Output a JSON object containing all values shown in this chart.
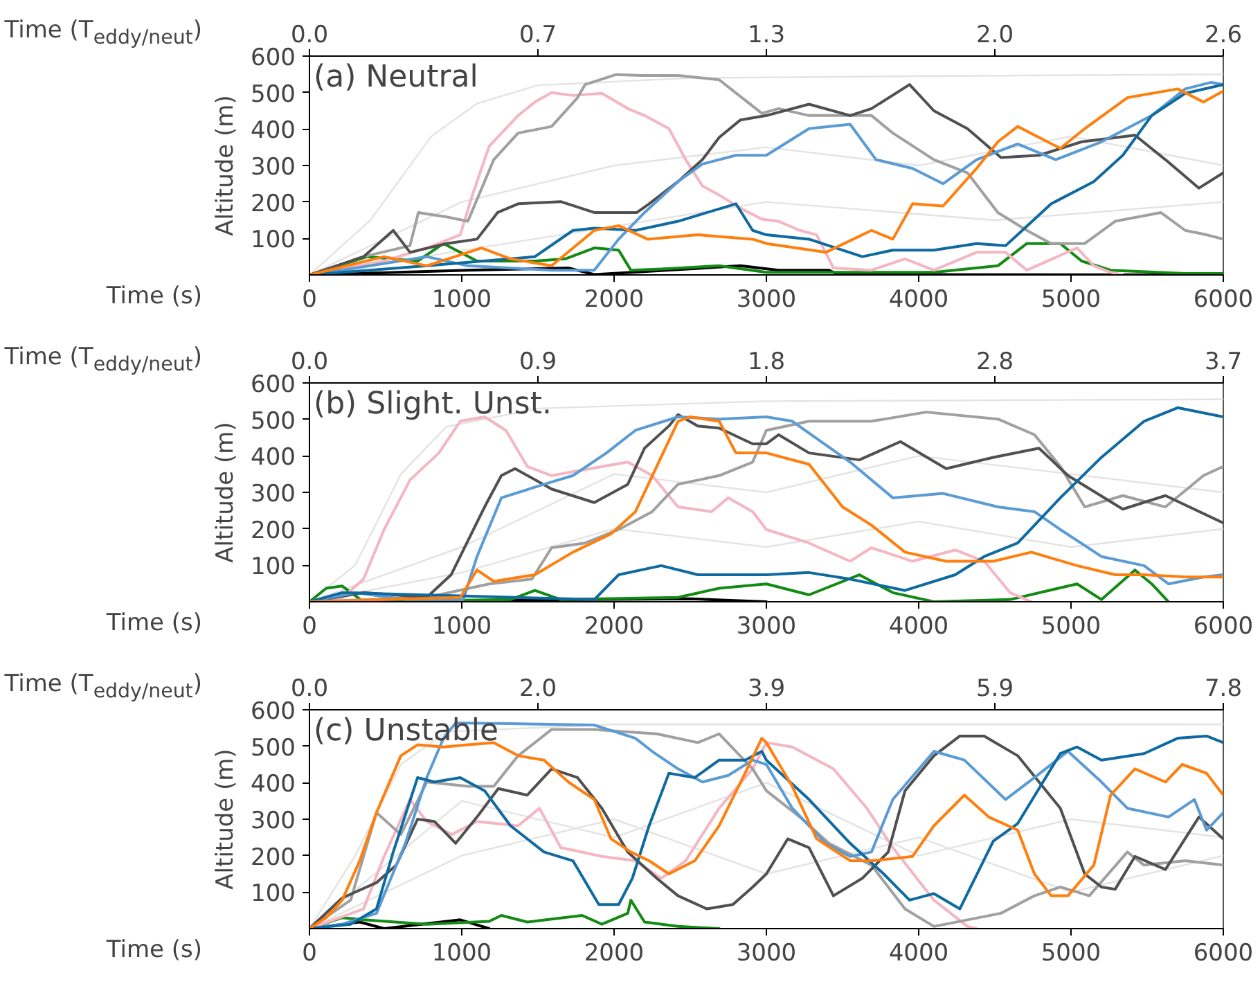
{
  "chart_data": [
    {
      "type": "line",
      "title": "(a) Neutral",
      "xlabel": "Time (s)",
      "x2label": "Time (T$_{eddy/neut}$)",
      "ylabel": "Altitude (m)",
      "xlim": [
        0,
        6000
      ],
      "xticks": [
        0,
        1000,
        2000,
        3000,
        4000,
        5000,
        6000
      ],
      "ylim": [
        0,
        600
      ],
      "yticks": [
        100,
        200,
        300,
        400,
        500,
        600
      ],
      "x2lim": [
        0,
        2.6
      ],
      "x2ticks": [
        {
          "value": 0,
          "label": "0.0"
        },
        {
          "value": 0.65,
          "label": "0.7"
        },
        {
          "value": 1.3,
          "label": "1.3"
        },
        {
          "value": 1.95,
          "label": "2.0"
        },
        {
          "value": 2.6,
          "label": "2.6"
        }
      ],
      "series": [
        {
          "color": "#e3e3e3",
          "x": [
            0,
            400,
            800,
            1100,
            1500,
            2500,
            4000,
            6000
          ],
          "values": [
            0,
            150,
            380,
            470,
            520,
            540,
            545,
            550
          ]
        },
        {
          "color": "#e3e3e3",
          "x": [
            0,
            1000,
            2000,
            3000,
            4000,
            5000,
            6000
          ],
          "values": [
            0,
            200,
            300,
            350,
            300,
            380,
            300
          ]
        },
        {
          "color": "#e3e3e3",
          "x": [
            0,
            1500,
            3000,
            4500,
            6000
          ],
          "values": [
            0,
            100,
            200,
            150,
            200
          ]
        },
        {
          "color": "#000000",
          "x": [
            0,
            1040,
            1700,
            1870,
            2830,
            3080,
            3410,
            3470,
            6000
          ],
          "values": [
            0,
            13,
            19,
            1,
            25,
            13,
            13,
            1,
            0
          ]
        },
        {
          "color": "#138a13",
          "x": [
            0,
            380,
            710,
            880,
            1100,
            1480,
            1680,
            1870,
            2030,
            2110,
            2310,
            2690,
            3000,
            4100,
            4520,
            4710,
            4930,
            5070,
            5260,
            5750,
            6000
          ],
          "values": [
            0,
            50,
            38,
            86,
            38,
            38,
            44,
            74,
            68,
            13,
            16,
            25,
            7,
            7,
            25,
            86,
            86,
            38,
            13,
            4,
            4
          ]
        },
        {
          "color": "#f4b6c2",
          "x": [
            0,
            490,
            770,
            990,
            1070,
            1180,
            1370,
            1480,
            1590,
            1730,
            1920,
            2090,
            2200,
            2360,
            2470,
            2580,
            2690,
            2830,
            2970,
            3080,
            3220,
            3330,
            3440,
            3690,
            3910,
            4100,
            4380,
            4570,
            4710,
            5040,
            5150,
            5260,
            5340
          ],
          "values": [
            0,
            38,
            74,
            110,
            219,
            353,
            437,
            474,
            500,
            492,
            498,
            456,
            437,
            401,
            316,
            244,
            219,
            183,
            153,
            147,
            122,
            110,
            19,
            13,
            44,
            13,
            62,
            62,
            13,
            74,
            25,
            7,
            0
          ]
        },
        {
          "color": "#a0a0a0",
          "x": [
            0,
            355,
            660,
            715,
            900,
            1040,
            1210,
            1370,
            1590,
            1760,
            1810,
            2010,
            2180,
            2420,
            2690,
            2970,
            3080,
            3280,
            3690,
            3830,
            4100,
            4320,
            4520,
            4710,
            4870,
            5090,
            5290,
            5590,
            5750,
            5890,
            6000
          ],
          "values": [
            0,
            50,
            80,
            171,
            159,
            147,
            316,
            389,
            407,
            486,
            522,
            549,
            547,
            547,
            535,
            443,
            456,
            437,
            437,
            389,
            316,
            280,
            171,
            122,
            86,
            86,
            147,
            171,
            122,
            110,
            98
          ]
        },
        {
          "color": "#505050",
          "x": [
            0,
            355,
            550,
            660,
            900,
            1100,
            1235,
            1370,
            1650,
            1870,
            2150,
            2230,
            2420,
            2580,
            2690,
            2830,
            3000,
            3280,
            3550,
            3690,
            3940,
            4100,
            4320,
            4540,
            4790,
            5070,
            5420,
            5620,
            5840,
            6000
          ],
          "values": [
            0,
            50,
            122,
            62,
            86,
            98,
            171,
            195,
            201,
            171,
            171,
            195,
            256,
            316,
            377,
            425,
            437,
            468,
            437,
            456,
            522,
            450,
            401,
            322,
            328,
            365,
            383,
            316,
            238,
            280
          ]
        },
        {
          "color": "#5b9bd5",
          "x": [
            0,
            215,
            770,
            1040,
            1590,
            1870,
            2030,
            2200,
            2420,
            2580,
            2800,
            3000,
            3280,
            3550,
            3720,
            3960,
            4160,
            4380,
            4650,
            4900,
            5200,
            5530,
            5750,
            5920,
            6000
          ],
          "values": [
            0,
            13,
            50,
            25,
            13,
            13,
            98,
            171,
            256,
            304,
            328,
            328,
            401,
            413,
            316,
            292,
            250,
            316,
            359,
            316,
            365,
            437,
            510,
            528,
            522
          ]
        },
        {
          "color": "#0f6aa0",
          "x": [
            0,
            770,
            1480,
            1730,
            1870,
            2140,
            2420,
            2800,
            2910,
            3000,
            3280,
            3630,
            3830,
            4100,
            4380,
            4570,
            4680,
            4870,
            5150,
            5340,
            5530,
            5750,
            6000
          ],
          "values": [
            0,
            25,
            50,
            122,
            128,
            122,
            147,
            195,
            122,
            110,
            98,
            50,
            68,
            68,
            86,
            80,
            122,
            195,
            256,
            328,
            437,
            498,
            522
          ]
        },
        {
          "color": "#ff7f0e",
          "x": [
            0,
            490,
            770,
            1130,
            1320,
            1590,
            1870,
            2030,
            2220,
            2550,
            2910,
            3000,
            3390,
            3690,
            3830,
            3960,
            4160,
            4380,
            4520,
            4650,
            4930,
            5090,
            5370,
            5700,
            5870,
            6000
          ],
          "values": [
            0,
            50,
            25,
            74,
            44,
            25,
            122,
            135,
            98,
            110,
            98,
            86,
            62,
            122,
            98,
            195,
            189,
            292,
            365,
            407,
            347,
            401,
            486,
            510,
            474,
            504
          ]
        }
      ]
    },
    {
      "type": "line",
      "title": "(b) Slight. Unst.",
      "xlabel": "Time (s)",
      "x2label": "Time (T$_{eddy/neut}$)",
      "ylabel": "Altitude (m)",
      "xlim": [
        0,
        6000
      ],
      "xticks": [
        0,
        1000,
        2000,
        3000,
        4000,
        5000,
        6000
      ],
      "ylim": [
        0,
        600
      ],
      "yticks": [
        100,
        200,
        300,
        400,
        500,
        600
      ],
      "x2lim": [
        0,
        3.7
      ],
      "x2ticks": [
        {
          "value": 0,
          "label": "0.0"
        },
        {
          "value": 0.925,
          "label": "0.9"
        },
        {
          "value": 1.85,
          "label": "1.8"
        },
        {
          "value": 2.775,
          "label": "2.8"
        },
        {
          "value": 3.7,
          "label": "3.7"
        }
      ],
      "series": [
        {
          "color": "#e3e3e3",
          "x": [
            0,
            300,
            600,
            900,
            1500,
            3000,
            6000
          ],
          "values": [
            0,
            100,
            350,
            480,
            530,
            550,
            555
          ]
        },
        {
          "color": "#e3e3e3",
          "x": [
            0,
            1000,
            2000,
            3000,
            4000,
            5000,
            6000
          ],
          "values": [
            0,
            150,
            350,
            300,
            400,
            350,
            300
          ]
        },
        {
          "color": "#e3e3e3",
          "x": [
            0,
            1000,
            2000,
            3000,
            4000,
            5000,
            6000
          ],
          "values": [
            0,
            80,
            200,
            150,
            220,
            150,
            200
          ]
        },
        {
          "color": "#000000",
          "x": [
            0,
            1500,
            2500,
            3000
          ],
          "values": [
            0,
            5,
            8,
            0
          ]
        },
        {
          "color": "#138a13",
          "x": [
            0,
            110,
            215,
            355,
            1320,
            1480,
            1650,
            2420,
            2690,
            3000,
            3280,
            3610,
            3830,
            4100,
            4600,
            5040,
            5200,
            5420,
            5530,
            5640
          ],
          "values": [
            0,
            37,
            43,
            0,
            6,
            31,
            6,
            12,
            37,
            49,
            19,
            74,
            25,
            0,
            6,
            49,
            6,
            87,
            49,
            0
          ]
        },
        {
          "color": "#f4b6c2",
          "x": [
            0,
            220,
            355,
            490,
            660,
            850,
            990,
            1150,
            1290,
            1430,
            1590,
            1760,
            2090,
            2250,
            2420,
            2640,
            2750,
            2910,
            3000,
            3280,
            3550,
            3690,
            3960,
            4240,
            4430,
            4600,
            4740
          ],
          "values": [
            0,
            12,
            62,
            198,
            334,
            408,
            495,
            507,
            470,
            371,
            346,
            359,
            383,
            346,
            260,
            247,
            285,
            247,
            198,
            161,
            111,
            148,
            111,
            142,
            111,
            25,
            0
          ]
        },
        {
          "color": "#a0a0a0",
          "x": [
            0,
            770,
            1180,
            1460,
            1590,
            1810,
            2030,
            2250,
            2420,
            2690,
            2910,
            3000,
            3280,
            3690,
            4050,
            4520,
            4760,
            4930,
            5090,
            5340,
            5620,
            5870,
            6000
          ],
          "values": [
            0,
            12,
            49,
            62,
            148,
            161,
            198,
            247,
            322,
            346,
            383,
            470,
            495,
            495,
            520,
            501,
            458,
            371,
            260,
            291,
            260,
            346,
            371
          ]
        },
        {
          "color": "#505050",
          "x": [
            0,
            355,
            770,
            930,
            1150,
            1260,
            1350,
            1590,
            1870,
            2090,
            2200,
            2360,
            2420,
            2550,
            2690,
            2910,
            3000,
            3080,
            3280,
            3610,
            3880,
            4180,
            4490,
            4790,
            4980,
            5340,
            5620,
            6000
          ],
          "values": [
            0,
            25,
            12,
            74,
            260,
            346,
            365,
            309,
            272,
            322,
            421,
            482,
            513,
            482,
            476,
            433,
            433,
            458,
            408,
            389,
            439,
            365,
            396,
            421,
            346,
            254,
            291,
            216
          ]
        },
        {
          "color": "#5b9bd5",
          "x": [
            0,
            300,
            630,
            1010,
            1100,
            1260,
            1540,
            1730,
            1950,
            2140,
            2420,
            2690,
            3000,
            3170,
            3550,
            3830,
            4160,
            4520,
            4760,
            4930,
            5200,
            5480,
            5640,
            5870,
            6000
          ],
          "values": [
            0,
            25,
            6,
            6,
            124,
            285,
            322,
            346,
            408,
            470,
            507,
            501,
            507,
            495,
            383,
            285,
            297,
            260,
            247,
            198,
            124,
            99,
            49,
            68,
            74
          ]
        },
        {
          "color": "#0f6aa0",
          "x": [
            0,
            215,
            1870,
            2030,
            2310,
            2550,
            2830,
            3000,
            3280,
            3550,
            3910,
            4240,
            4430,
            4650,
            4930,
            5200,
            5480,
            5700,
            6000
          ],
          "values": [
            0,
            25,
            6,
            74,
            99,
            74,
            74,
            74,
            80,
            62,
            31,
            74,
            124,
            161,
            285,
            396,
            495,
            532,
            507
          ]
        },
        {
          "color": "#ff7f0e",
          "x": [
            0,
            490,
            990,
            1100,
            1210,
            1480,
            1730,
            1980,
            2140,
            2280,
            2420,
            2500,
            2690,
            2800,
            3000,
            3280,
            3500,
            3690,
            3910,
            4180,
            4490,
            4740,
            5040,
            5290,
            5480,
            5760,
            6000
          ],
          "values": [
            0,
            6,
            12,
            87,
            56,
            74,
            136,
            186,
            247,
            371,
            495,
            507,
            495,
            408,
            408,
            377,
            260,
            210,
            136,
            111,
            111,
            136,
            99,
            74,
            74,
            68,
            68
          ]
        }
      ]
    },
    {
      "type": "line",
      "title": "(c) Unstable",
      "xlabel": "Time (s)",
      "x2label": "Time (T$_{eddy/neut}$)",
      "ylabel": "Altitude (m)",
      "xlim": [
        0,
        6000
      ],
      "xticks": [
        0,
        1000,
        2000,
        3000,
        4000,
        5000,
        6000
      ],
      "ylim": [
        0,
        600
      ],
      "yticks": [
        100,
        200,
        300,
        400,
        500,
        600
      ],
      "x2lim": [
        0,
        7.8
      ],
      "x2ticks": [
        {
          "value": 0,
          "label": "0.0"
        },
        {
          "value": 1.95,
          "label": "2.0"
        },
        {
          "value": 3.9,
          "label": "3.9"
        },
        {
          "value": 5.85,
          "label": "5.9"
        },
        {
          "value": 7.8,
          "label": "7.8"
        }
      ],
      "series": [
        {
          "color": "#e3e3e3",
          "x": [
            0,
            300,
            600,
            900,
            2000,
            4000,
            6000
          ],
          "values": [
            0,
            200,
            450,
            540,
            560,
            560,
            560
          ]
        },
        {
          "color": "#e3e3e3",
          "x": [
            0,
            1000,
            2000,
            3000,
            4000,
            5000,
            6000
          ],
          "values": [
            0,
            350,
            250,
            400,
            200,
            300,
            250
          ]
        },
        {
          "color": "#e3e3e3",
          "x": [
            0,
            1000,
            2000,
            3000,
            4000,
            5000,
            6000
          ],
          "values": [
            0,
            200,
            300,
            150,
            250,
            100,
            200
          ]
        },
        {
          "color": "#000000",
          "x": [
            0,
            330,
            490,
            990,
            1180
          ],
          "values": [
            0,
            18,
            0,
            24,
            0
          ]
        },
        {
          "color": "#138a13",
          "x": [
            0,
            215,
            355,
            770,
            1180,
            1260,
            1430,
            1790,
            1920,
            2090,
            2110,
            2200,
            2420,
            2690
          ],
          "values": [
            0,
            30,
            24,
            12,
            20,
            36,
            18,
            36,
            12,
            42,
            78,
            18,
            6,
            0
          ]
        },
        {
          "color": "#f4b6c2",
          "x": [
            0,
            355,
            490,
            660,
            770,
            935,
            1100,
            1370,
            1510,
            1650,
            1920,
            2140,
            2310,
            2470,
            2690,
            2910,
            3000,
            3170,
            3440,
            3660,
            3830,
            4100,
            4320,
            4380
          ],
          "values": [
            0,
            54,
            198,
            354,
            294,
            258,
            294,
            282,
            330,
            222,
            198,
            186,
            138,
            186,
            330,
            438,
            510,
            498,
            438,
            330,
            222,
            78,
            6,
            0
          ]
        },
        {
          "color": "#a0a0a0",
          "x": [
            0,
            270,
            440,
            600,
            770,
            1040,
            1210,
            1370,
            1590,
            1870,
            2060,
            2280,
            2550,
            2690,
            2910,
            3000,
            3220,
            3410,
            3690,
            3910,
            4100,
            4540,
            4760,
            4930,
            5120,
            5370,
            5480,
            5750,
            6000
          ],
          "values": [
            0,
            78,
            318,
            258,
            402,
            390,
            390,
            474,
            546,
            546,
            540,
            534,
            510,
            534,
            438,
            378,
            306,
            234,
            174,
            54,
            6,
            42,
            90,
            114,
            90,
            210,
            174,
            186,
            174
          ]
        },
        {
          "color": "#505050",
          "x": [
            0,
            215,
            440,
            570,
            710,
            820,
            960,
            1100,
            1240,
            1430,
            1590,
            1760,
            1920,
            2090,
            2280,
            2420,
            2610,
            2780,
            2910,
            3000,
            3140,
            3280,
            3440,
            3630,
            3800,
            3910,
            4100,
            4270,
            4430,
            4650,
            4930,
            5090,
            5200,
            5290,
            5420,
            5620,
            5840,
            6000
          ],
          "values": [
            0,
            84,
            126,
            174,
            300,
            294,
            234,
            306,
            384,
            366,
            438,
            414,
            330,
            210,
            138,
            90,
            54,
            66,
            114,
            150,
            246,
            222,
            90,
            138,
            210,
            378,
            474,
            528,
            528,
            474,
            330,
            150,
            114,
            108,
            198,
            162,
            306,
            246
          ]
        },
        {
          "color": "#5b9bd5",
          "x": [
            0,
            215,
            440,
            630,
            770,
            880,
            960,
            1320,
            1870,
            2140,
            2250,
            2420,
            2580,
            2750,
            2910,
            3000,
            3170,
            3390,
            3550,
            3690,
            3830,
            4100,
            4300,
            4570,
            4760,
            4980,
            5200,
            5370,
            5640,
            5810,
            5890,
            6000
          ],
          "values": [
            0,
            12,
            42,
            234,
            414,
            522,
            564,
            562,
            558,
            522,
            486,
            438,
            402,
            420,
            462,
            450,
            330,
            234,
            198,
            210,
            354,
            486,
            462,
            354,
            414,
            486,
            402,
            330,
            306,
            354,
            270,
            318
          ]
        },
        {
          "color": "#0f6aa0",
          "x": [
            0,
            270,
            440,
            550,
            710,
            820,
            990,
            1150,
            1320,
            1540,
            1730,
            1900,
            2030,
            2120,
            2230,
            2360,
            2530,
            2690,
            2860,
            2970,
            3000,
            3280,
            3550,
            3770,
            3940,
            4100,
            4270,
            4490,
            4650,
            4790,
            4930,
            5040,
            5200,
            5480,
            5700,
            5890,
            6000
          ],
          "values": [
            0,
            12,
            54,
            210,
            414,
            402,
            414,
            378,
            282,
            210,
            186,
            66,
            66,
            138,
            282,
            426,
            414,
            462,
            462,
            486,
            462,
            354,
            234,
            150,
            78,
            96,
            54,
            240,
            288,
            384,
            480,
            498,
            462,
            480,
            522,
            528,
            510
          ]
        },
        {
          "color": "#ff7f0e",
          "x": [
            0,
            110,
            215,
            330,
            440,
            600,
            710,
            880,
            1040,
            1210,
            1370,
            1540,
            1700,
            1870,
            1980,
            2110,
            2230,
            2360,
            2530,
            2690,
            2860,
            2970,
            3000,
            3170,
            3330,
            3550,
            3690,
            3830,
            3960,
            4100,
            4300,
            4460,
            4650,
            4760,
            4870,
            4980,
            5150,
            5260,
            5420,
            5620,
            5730,
            5890,
            6000
          ],
          "values": [
            0,
            30,
            78,
            186,
            318,
            474,
            504,
            498,
            504,
            510,
            474,
            462,
            402,
            354,
            246,
            210,
            186,
            150,
            186,
            282,
            426,
            522,
            510,
            390,
            246,
            186,
            186,
            192,
            198,
            282,
            366,
            306,
            270,
            150,
            90,
            90,
            174,
            366,
            438,
            402,
            450,
            426,
            366
          ]
        }
      ]
    }
  ]
}
